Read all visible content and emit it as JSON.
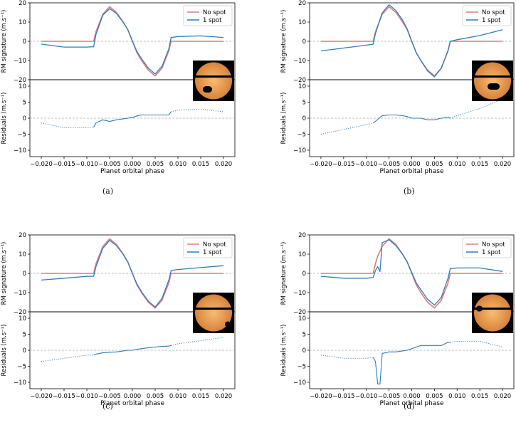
{
  "legend": {
    "no_spot": "No spot",
    "one_spot": "1 spot"
  },
  "colors": {
    "no_spot": "#e07a7f",
    "one_spot": "#2f7db5",
    "zero_line": "#aaaaaa",
    "star_dark": "#d8833a",
    "star_light": "#f6bd74",
    "frame_bg": "#000000"
  },
  "axes": {
    "top_ylabel": "RM signature (m.s⁻¹)",
    "bottom_ylabel": "Residuals (m.s⁻¹)",
    "xlabel": "Planet orbital phase",
    "xticks": [
      "−0.020",
      "−0.015",
      "−0.010",
      "−0.005",
      "0.000",
      "0.005",
      "0.010",
      "0.015",
      "0.020"
    ],
    "top_yticks": [
      "20",
      "10",
      "0",
      "−10",
      "−20"
    ],
    "bottom_yticks": [
      "10",
      "5",
      "0",
      "−5",
      "−10"
    ]
  },
  "chart_data": [
    {
      "type": "line",
      "caption": "(a)",
      "xlim": [
        -0.0225,
        0.0225
      ],
      "ylim_top": [
        -20,
        20
      ],
      "ylim_bottom": [
        -12,
        12
      ],
      "x": [
        -0.02,
        -0.015,
        -0.01,
        -0.0085,
        -0.008,
        -0.0065,
        -0.005,
        -0.0035,
        -0.002,
        -0.001,
        0.0,
        0.001,
        0.002,
        0.0035,
        0.005,
        0.0065,
        0.008,
        0.0085,
        0.01,
        0.015,
        0.02
      ],
      "series": [
        {
          "name": "No spot",
          "values": [
            0,
            0,
            0,
            0,
            5,
            14,
            18,
            15,
            10,
            6,
            0,
            -6,
            -10,
            -15,
            -18,
            -14,
            -5,
            0,
            0,
            0,
            0
          ]
        },
        {
          "name": "1 spot",
          "values": [
            -1.5,
            -3,
            -3,
            -2.8,
            3.5,
            13.5,
            17,
            14.5,
            9.8,
            6,
            0.2,
            -5.3,
            -9,
            -14,
            -17,
            -13,
            -4,
            2,
            2.5,
            2.8,
            2
          ]
        }
      ],
      "residuals": [
        -1.5,
        -3,
        -3,
        -2.8,
        -1.5,
        -0.5,
        -1,
        -0.5,
        -0.2,
        0,
        0.2,
        0.7,
        1,
        1,
        1,
        1,
        1,
        2,
        2.5,
        2.8,
        2
      ],
      "spot": {
        "position": "lower-left limb",
        "size": "medium"
      }
    },
    {
      "type": "line",
      "caption": "(b)",
      "xlim": [
        -0.0225,
        0.0225
      ],
      "ylim_top": [
        -20,
        20
      ],
      "ylim_bottom": [
        -12,
        12
      ],
      "x": [
        -0.02,
        -0.015,
        -0.01,
        -0.0085,
        -0.008,
        -0.0065,
        -0.005,
        -0.0035,
        -0.002,
        -0.001,
        0.0,
        0.001,
        0.002,
        0.0035,
        0.005,
        0.0065,
        0.008,
        0.0085,
        0.01,
        0.015,
        0.02
      ],
      "series": [
        {
          "name": "No spot",
          "values": [
            0,
            0,
            0,
            0,
            5,
            14,
            18,
            15,
            10,
            6,
            0,
            -6,
            -10,
            -15,
            -18,
            -14,
            -5,
            0,
            0,
            0,
            0
          ]
        },
        {
          "name": "1 spot",
          "values": [
            -5,
            -3.5,
            -2,
            -1.5,
            4,
            14.8,
            19,
            16,
            11,
            6.5,
            0,
            -6,
            -10,
            -15.5,
            -18.5,
            -14,
            -4.8,
            0,
            0.8,
            3,
            6
          ]
        }
      ],
      "residuals": [
        -5,
        -3.5,
        -2,
        -1.5,
        -1,
        0.8,
        1,
        1,
        0.8,
        0.5,
        0,
        0,
        0,
        -0.5,
        -0.5,
        0,
        0.2,
        0,
        0.8,
        3,
        6
      ],
      "spot": {
        "position": "centre, below transit chord",
        "size": "medium"
      }
    },
    {
      "type": "line",
      "caption": "(c)",
      "xlim": [
        -0.0225,
        0.0225
      ],
      "ylim_top": [
        -20,
        20
      ],
      "ylim_bottom": [
        -12,
        12
      ],
      "x": [
        -0.02,
        -0.015,
        -0.01,
        -0.0085,
        -0.008,
        -0.0065,
        -0.005,
        -0.0035,
        -0.002,
        -0.001,
        0.0,
        0.001,
        0.002,
        0.0035,
        0.005,
        0.0065,
        0.008,
        0.0085,
        0.01,
        0.015,
        0.02
      ],
      "series": [
        {
          "name": "No spot",
          "values": [
            0,
            0,
            0,
            0,
            5,
            14,
            18,
            15,
            10,
            6,
            0,
            -6,
            -10,
            -15,
            -18,
            -14,
            -5,
            0,
            0,
            0,
            0
          ]
        },
        {
          "name": "1 spot",
          "values": [
            -3.5,
            -2.5,
            -1.5,
            -1.5,
            3.5,
            13,
            17.2,
            14.5,
            9.8,
            5.8,
            0,
            -5.5,
            -9.5,
            -14.5,
            -17.5,
            -13,
            -3.5,
            1.5,
            2,
            3,
            4
          ]
        }
      ],
      "residuals": [
        -3.5,
        -2.5,
        -1.5,
        -1.5,
        -1.2,
        -0.8,
        -0.6,
        -0.5,
        -0.2,
        0,
        0,
        0.3,
        0.5,
        0.8,
        1,
        1.2,
        1.3,
        1.5,
        2,
        3,
        4
      ],
      "spot": {
        "position": "lower-right limb",
        "size": "small"
      }
    },
    {
      "type": "line",
      "caption": "(d)",
      "xlim": [
        -0.0225,
        0.0225
      ],
      "ylim_top": [
        -20,
        20
      ],
      "ylim_bottom": [
        -12,
        12
      ],
      "x": [
        -0.02,
        -0.015,
        -0.01,
        -0.0085,
        -0.008,
        -0.0075,
        -0.007,
        -0.0065,
        -0.005,
        -0.0035,
        -0.002,
        -0.001,
        0.0,
        0.001,
        0.002,
        0.0035,
        0.005,
        0.0065,
        0.008,
        0.0085,
        0.01,
        0.015,
        0.02
      ],
      "series": [
        {
          "name": "No spot",
          "values": [
            0,
            0,
            0,
            0,
            5,
            9,
            11.5,
            14,
            18,
            15,
            10,
            6,
            0,
            -6,
            -10,
            -15,
            -18,
            -14,
            -5,
            0,
            0,
            0,
            0
          ]
        },
        {
          "name": "1 spot",
          "values": [
            -1.5,
            -2.5,
            -2.5,
            -2.2,
            1.5,
            3.5,
            1,
            16,
            17.5,
            14.5,
            9.8,
            6,
            0.5,
            -5,
            -8.5,
            -13.5,
            -16.5,
            -12.5,
            -2.5,
            2.5,
            2.8,
            2.8,
            1
          ]
        }
      ],
      "residuals": [
        -1.5,
        -2.5,
        -2.5,
        -2.2,
        -3.5,
        -10.5,
        -10.5,
        -1,
        -0.5,
        -0.5,
        -0.2,
        0,
        0.5,
        1,
        1.5,
        1.5,
        1.5,
        1.5,
        2.5,
        2.5,
        2.8,
        2.8,
        1
      ],
      "spot": {
        "position": "upper-left limb",
        "size": "small"
      }
    }
  ]
}
